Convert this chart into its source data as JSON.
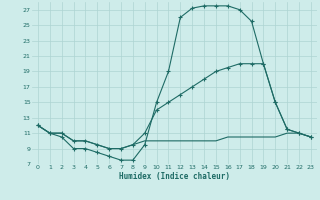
{
  "xlabel": "Humidex (Indice chaleur)",
  "bg_color": "#ceecea",
  "grid_color": "#aed4d2",
  "line_color": "#1e6b65",
  "xlim": [
    -0.5,
    23.5
  ],
  "ylim": [
    7,
    28
  ],
  "xticks": [
    0,
    1,
    2,
    3,
    4,
    5,
    6,
    7,
    8,
    9,
    10,
    11,
    12,
    13,
    14,
    15,
    16,
    17,
    18,
    19,
    20,
    21,
    22,
    23
  ],
  "yticks": [
    7,
    9,
    11,
    13,
    15,
    17,
    19,
    21,
    23,
    25,
    27
  ],
  "line1_x": [
    0,
    1,
    2,
    3,
    4,
    5,
    6,
    7,
    8,
    9,
    10,
    11,
    12,
    13,
    14,
    15,
    16,
    17,
    18,
    19,
    20,
    21,
    22,
    23
  ],
  "line1_y": [
    12,
    11,
    10.5,
    9,
    9,
    8.5,
    8,
    7.5,
    7.5,
    9.5,
    15,
    19,
    26,
    27.2,
    27.5,
    27.5,
    27.5,
    27,
    25.5,
    20,
    15,
    11.5,
    11,
    10.5
  ],
  "line2_x": [
    0,
    1,
    2,
    3,
    4,
    5,
    6,
    7,
    8,
    9,
    10,
    11,
    12,
    13,
    14,
    15,
    16,
    17,
    18,
    19,
    20,
    21,
    22,
    23
  ],
  "line2_y": [
    12,
    11,
    11,
    10,
    10,
    9.5,
    9,
    9,
    9.5,
    11,
    14,
    15,
    16,
    17,
    18,
    19,
    19.5,
    20,
    20,
    20,
    15,
    11.5,
    11,
    10.5
  ],
  "line3_x": [
    0,
    1,
    2,
    3,
    4,
    5,
    6,
    7,
    8,
    9,
    10,
    11,
    12,
    13,
    14,
    15,
    16,
    17,
    18,
    19,
    20,
    21,
    22,
    23
  ],
  "line3_y": [
    12,
    11,
    11,
    10,
    10,
    9.5,
    9,
    9,
    9.5,
    10,
    10,
    10,
    10,
    10,
    10,
    10,
    10.5,
    10.5,
    10.5,
    10.5,
    10.5,
    11,
    11,
    10.5
  ]
}
